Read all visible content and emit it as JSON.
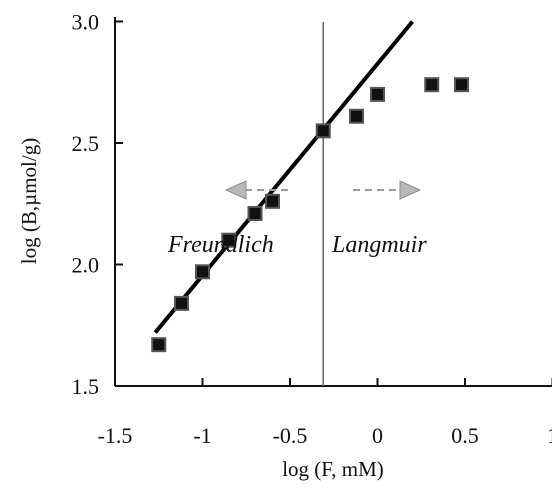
{
  "chart_data": {
    "type": "scatter",
    "xlabel": "log (F, mM)",
    "ylabel": "log (B,µmol/g)",
    "xlim": [
      -1.5,
      1.0
    ],
    "ylim": [
      1.5,
      3.0
    ],
    "x_ticks": [
      "-1.5",
      "-1",
      "-0.5",
      "0",
      "0.5",
      "1"
    ],
    "y_ticks": [
      "1.5",
      "2.0",
      "2.5",
      "3.0"
    ],
    "points": [
      {
        "x": -1.25,
        "y": 1.67
      },
      {
        "x": -1.12,
        "y": 1.84
      },
      {
        "x": -1.0,
        "y": 1.97
      },
      {
        "x": -0.85,
        "y": 2.1
      },
      {
        "x": -0.7,
        "y": 2.21
      },
      {
        "x": -0.6,
        "y": 2.26
      },
      {
        "x": -0.31,
        "y": 2.55
      },
      {
        "x": -0.12,
        "y": 2.61
      },
      {
        "x": 0.0,
        "y": 2.7
      },
      {
        "x": 0.31,
        "y": 2.74
      },
      {
        "x": 0.48,
        "y": 2.74
      }
    ],
    "fit_line": {
      "x": [
        -1.27,
        0.2
      ],
      "y": [
        1.72,
        3.0
      ]
    },
    "divider_x": -0.31,
    "region_labels": {
      "left": "Freundlich",
      "right": "Langmuir"
    },
    "legend": "none",
    "grid": false
  }
}
